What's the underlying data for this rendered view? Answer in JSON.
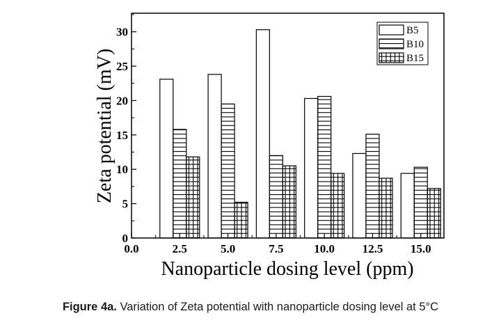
{
  "chart_data": {
    "type": "bar",
    "title": "",
    "xlabel": "Nanoparticle dosing level (ppm)",
    "ylabel": "Zeta potential (mV)",
    "x": [
      2.5,
      5.0,
      7.5,
      10.0,
      12.5,
      15.0
    ],
    "x_tick_labels": [
      "0.0",
      "2.5",
      "5.0",
      "7.5",
      "10.0",
      "12.5",
      "15.0"
    ],
    "x_ticks": [
      0.0,
      2.5,
      5.0,
      7.5,
      10.0,
      12.5,
      15.0
    ],
    "xlim": [
      0.0,
      16.2
    ],
    "y_tick_labels": [
      "0",
      "5",
      "10",
      "15",
      "20",
      "25",
      "30"
    ],
    "y_ticks": [
      0,
      5,
      10,
      15,
      20,
      25,
      30
    ],
    "ylim": [
      0,
      32.7
    ],
    "grid": false,
    "legend_position": "top-right",
    "series": [
      {
        "name": "B5",
        "pattern": "empty",
        "values": [
          23.1,
          23.8,
          30.3,
          20.3,
          12.3,
          9.4
        ]
      },
      {
        "name": "B10",
        "pattern": "horizontal-lines",
        "values": [
          15.8,
          19.5,
          12.0,
          20.6,
          15.1,
          10.3
        ]
      },
      {
        "name": "B15",
        "pattern": "grid",
        "values": [
          11.8,
          5.2,
          10.5,
          9.4,
          8.7,
          7.2
        ]
      }
    ]
  },
  "caption": {
    "label": "Figure 4a.",
    "text": " Variation of Zeta potential with nanoparticle dosing level at 5°C"
  }
}
